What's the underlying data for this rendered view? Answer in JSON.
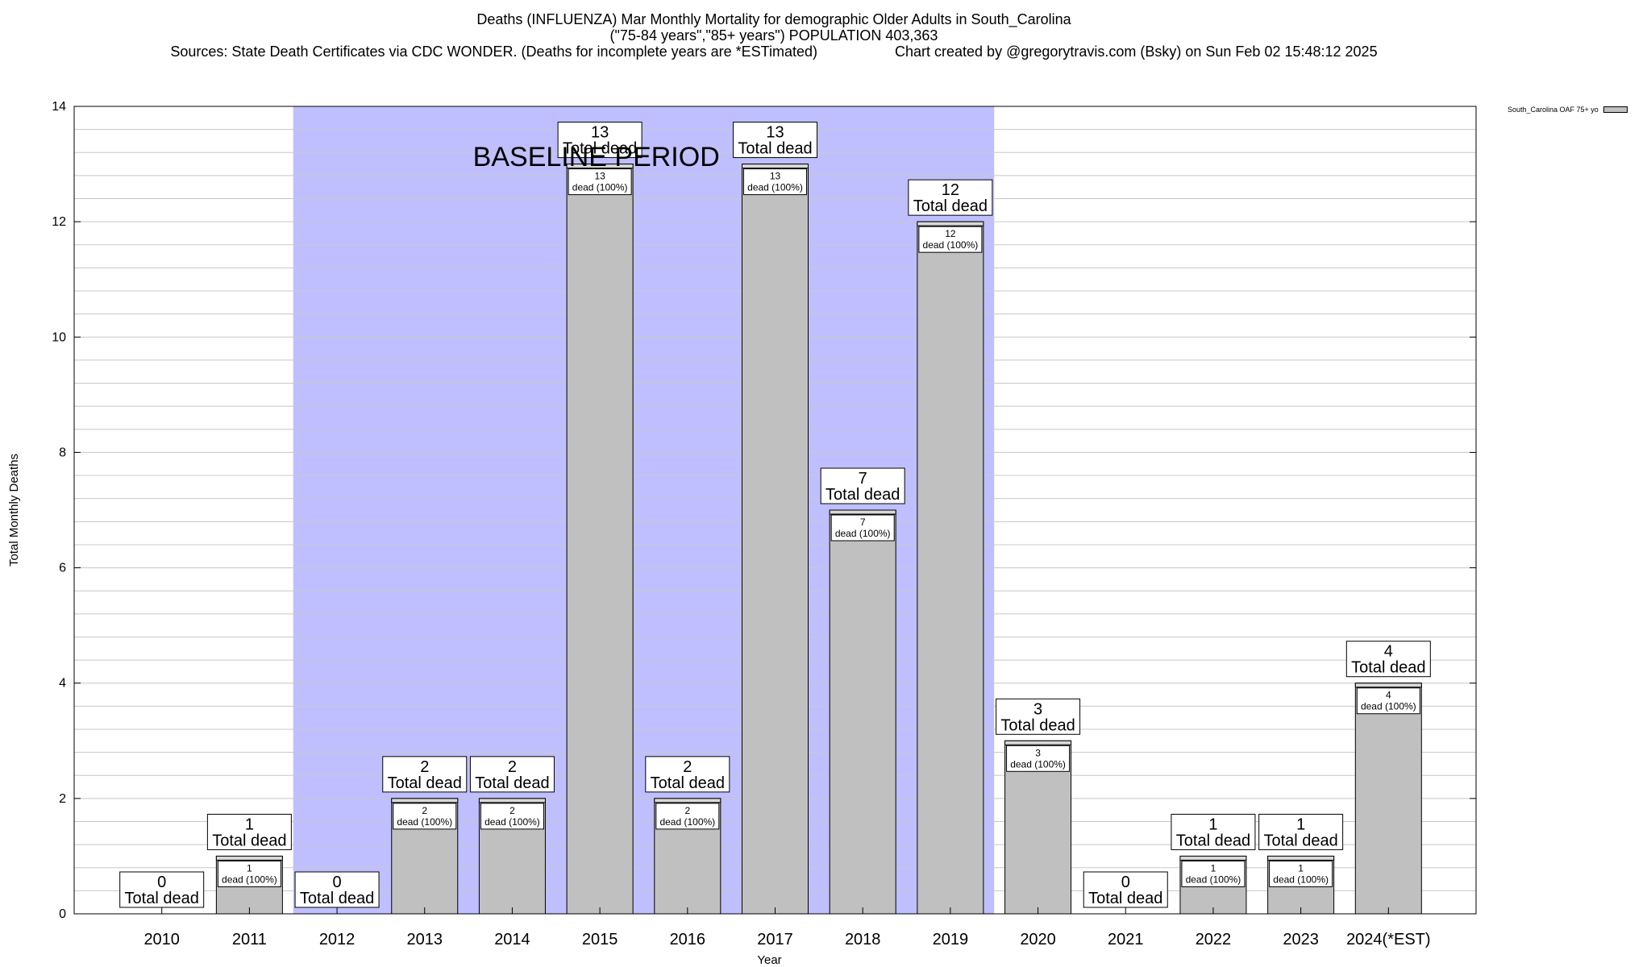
{
  "header": {
    "title_line1": "Deaths (INFLUENZA) Mar Monthly Mortality for demographic Older Adults in South_Carolina",
    "title_line2": "(\"75-84 years\",\"85+ years\") POPULATION 403,363",
    "sources": "Sources: State Death Certificates via CDC WONDER. (Deaths for incomplete years are *ESTimated)",
    "credit": "Chart created by @gregorytravis.com (Bsky) on Sun Feb 02 15:48:12 2025"
  },
  "chart_data": {
    "type": "bar",
    "categories": [
      "2010",
      "2011",
      "2012",
      "2013",
      "2014",
      "2015",
      "2016",
      "2017",
      "2018",
      "2019",
      "2020",
      "2021",
      "2022",
      "2023",
      "2024(*EST)"
    ],
    "series": [
      {
        "name": "South_Carolina OAF 75+ yo",
        "values": [
          0,
          1,
          0,
          2,
          2,
          13,
          2,
          13,
          7,
          12,
          3,
          0,
          1,
          1,
          4
        ]
      }
    ],
    "xlabel": "Year",
    "ylabel": "Total Monthly Deaths",
    "ylim": [
      0,
      14
    ],
    "yticks": [
      0,
      2,
      4,
      6,
      8,
      10,
      12,
      14
    ],
    "grid": true,
    "legend_position": "top-right",
    "bar_color": "#c0c0c0",
    "baseline": {
      "label": "BASELINE PERIOD",
      "start": "2012",
      "end": "2019",
      "color": "#bfbfff"
    },
    "total_label_text": "Total dead",
    "inner_label_text": "dead (100%)"
  }
}
